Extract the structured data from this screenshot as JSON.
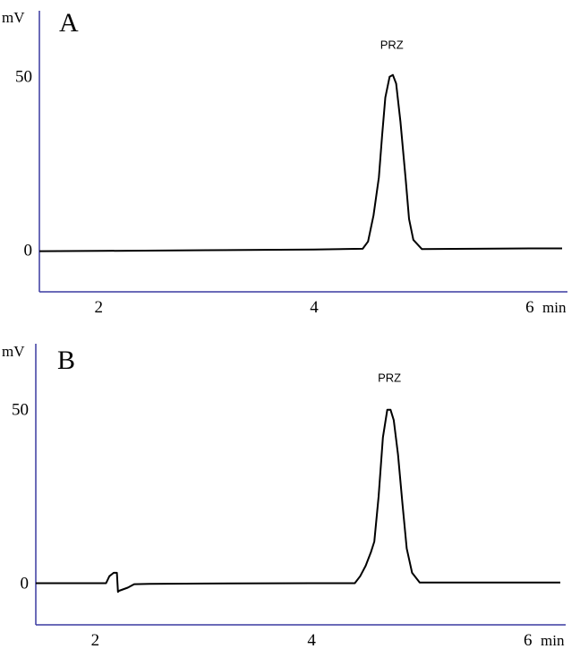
{
  "chart_data": [
    {
      "type": "line",
      "panel": "A",
      "ylabel": "mV",
      "xlabel": "min",
      "xticks": [
        2,
        4,
        6
      ],
      "yticks": [
        0,
        50
      ],
      "xlim": [
        1.45,
        6.35
      ],
      "ylim": [
        -12,
        69
      ],
      "annotations": [
        {
          "text": "PRZ",
          "x": 4.72,
          "y": 58
        }
      ],
      "series": [
        {
          "x": [
            1.45,
            2.0,
            3.0,
            4.0,
            4.45,
            4.5,
            4.55,
            4.6,
            4.63,
            4.66,
            4.7,
            4.73,
            4.76,
            4.8,
            4.85,
            4.88,
            4.92,
            5.0,
            5.5,
            6.0,
            6.3
          ],
          "values": [
            -0.3,
            -0.2,
            0.0,
            0.2,
            0.4,
            2.5,
            10,
            21,
            33,
            44,
            50,
            50.5,
            48,
            37,
            20,
            9,
            3,
            0.3,
            0.4,
            0.5,
            0.5
          ]
        }
      ]
    },
    {
      "type": "line",
      "panel": "B",
      "ylabel": "mV",
      "xlabel": "min",
      "xticks": [
        2,
        4,
        6
      ],
      "yticks": [
        0,
        50
      ],
      "xlim": [
        1.45,
        6.35
      ],
      "ylim": [
        -12,
        69
      ],
      "annotations": [
        {
          "text": "PRZ",
          "x": 4.72,
          "y": 58
        }
      ],
      "series": [
        {
          "x": [
            1.45,
            2.1,
            2.13,
            2.17,
            2.2,
            2.21,
            2.22,
            2.3,
            2.36,
            2.5,
            3.0,
            4.0,
            4.4,
            4.45,
            4.5,
            4.55,
            4.58,
            4.62,
            4.66,
            4.7,
            4.73,
            4.76,
            4.8,
            4.84,
            4.88,
            4.93,
            5.0,
            5.5,
            6.0,
            6.3
          ],
          "values": [
            0,
            0,
            2,
            3,
            3,
            -2.5,
            -2.2,
            -1.3,
            -0.3,
            -0.2,
            -0.1,
            0,
            0,
            2,
            5,
            9,
            12,
            25,
            42,
            50,
            50,
            47,
            37,
            23,
            10,
            3,
            0.2,
            0.2,
            0.2,
            0.2
          ]
        }
      ]
    }
  ]
}
